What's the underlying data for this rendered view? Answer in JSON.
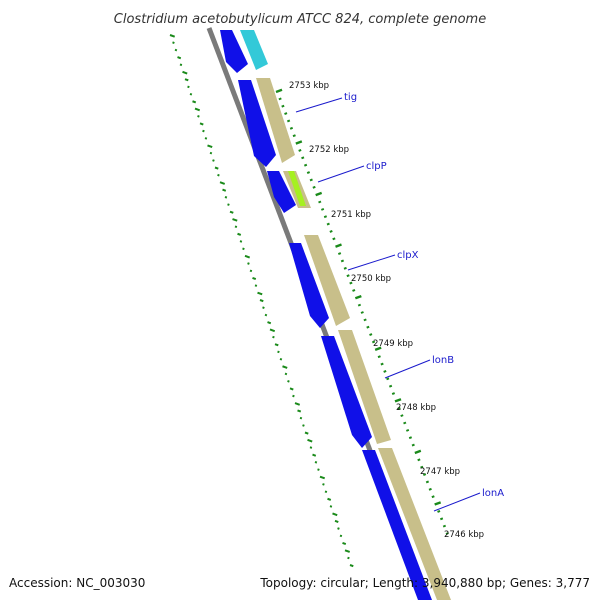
{
  "title": "Clostridium acetobutylicum ATCC 824, complete genome",
  "footer": {
    "accession": "Accession: NC_003030",
    "topology": "Topology: circular; Length: 3,940,880 bp; Genes: 3,777"
  },
  "ticks": [
    {
      "label": "2753 kbp"
    },
    {
      "label": "2752 kbp"
    },
    {
      "label": "2751 kbp"
    },
    {
      "label": "2750 kbp"
    },
    {
      "label": "2749 kbp"
    },
    {
      "label": "2748 kbp"
    },
    {
      "label": "2747 kbp"
    },
    {
      "label": "2746 kbp"
    }
  ],
  "genes": [
    {
      "label": "tig"
    },
    {
      "label": "clpP"
    },
    {
      "label": "clpX"
    },
    {
      "label": "lonB"
    },
    {
      "label": "lonA"
    }
  ],
  "colors": {
    "cds": "#1010e8",
    "feature_tan": "#c8bf8a",
    "feature_cyan": "#33c9d8",
    "feature_green": "#a6f020",
    "backbone": "#7a7a7a",
    "gc_skew": "#1a8a1a",
    "tick": "#1a8a1a",
    "label_line": "#1a1acc"
  }
}
